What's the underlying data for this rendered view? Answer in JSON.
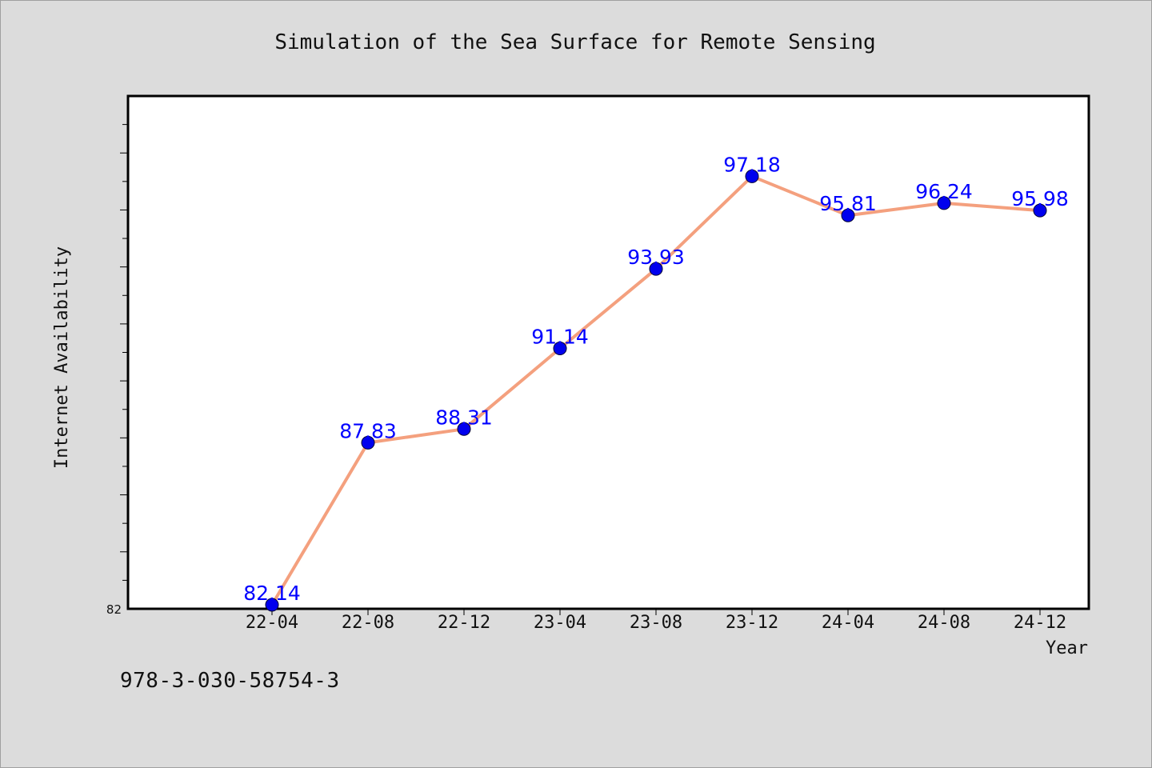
{
  "chart_data": {
    "type": "line",
    "title": "Simulation of the Sea Surface for Remote Sensing",
    "xlabel": "Year",
    "ylabel": "Internet Availability",
    "categories": [
      "22-04",
      "22-08",
      "22-12",
      "23-04",
      "23-08",
      "23-12",
      "24-04",
      "24-08",
      "24-12"
    ],
    "series": [
      {
        "values": [
          82.14,
          87.83,
          88.31,
          91.14,
          93.93,
          97.18,
          95.81,
          96.24,
          95.98
        ],
        "line_color": "#f4a07e",
        "marker_color": "#0000ee",
        "label_color": "#0000ff"
      }
    ],
    "ylim": [
      82,
      100
    ],
    "y_tick_labels": [
      "82"
    ],
    "grid": false,
    "legend": "none"
  },
  "footer": {
    "code": "978-3-030-58754-3"
  },
  "colors": {
    "background": "#dcdcdc",
    "plot_background": "#ffffff",
    "axis": "#000000"
  }
}
